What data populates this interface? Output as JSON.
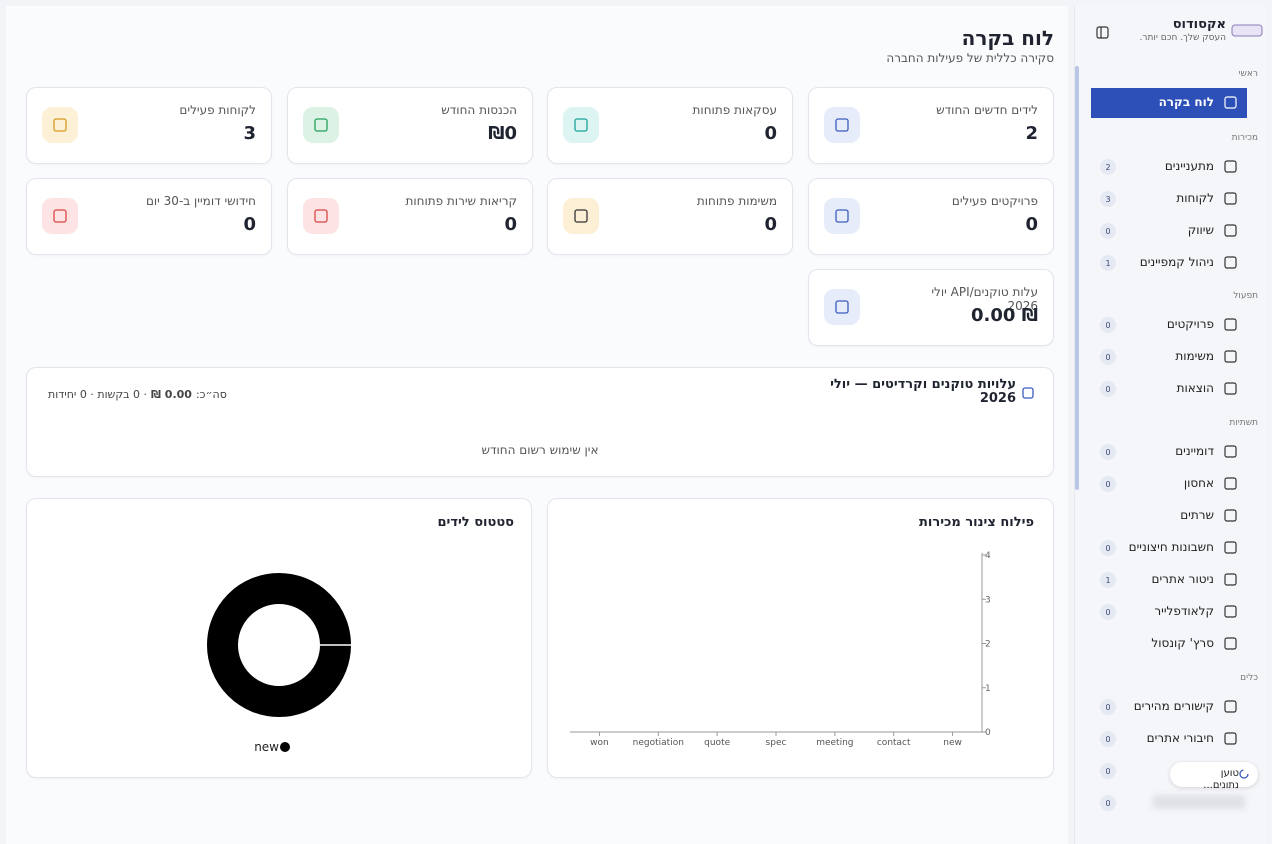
{
  "sidebar": {
    "brand": "אקסודוס",
    "tagline": "העסק שלך. חכם יותר.",
    "sections": [
      {
        "title": "ראשי",
        "items": [
          {
            "label": "לוח בקרה"
          }
        ]
      },
      {
        "title": "מכירות",
        "items": [
          {
            "label": "מתעניינים",
            "badge": 2
          },
          {
            "label": "לקוחות",
            "badge": 3
          },
          {
            "label": "שיווק",
            "badge": 0
          },
          {
            "label": "ניהול קמפיינים",
            "badge": 1
          }
        ]
      },
      {
        "title": "תפעול",
        "items": [
          {
            "label": "פרויקטים",
            "badge": 0
          },
          {
            "label": "משימות",
            "badge": 0
          },
          {
            "label": "הוצאות",
            "badge": 0
          }
        ]
      },
      {
        "title": "תשתיות",
        "items": [
          {
            "label": "דומיינים",
            "badge": 0
          },
          {
            "label": "אחסון",
            "badge": 0
          },
          {
            "label": "שרתים"
          },
          {
            "label": "חשבונות חיצוניים",
            "badge": 0
          },
          {
            "label": "ניטור אתרים",
            "badge": 1
          },
          {
            "label": "קלאודפלייר",
            "badge": 0
          },
          {
            "label": "סרץ' קונסול"
          }
        ]
      },
      {
        "title": "כלים",
        "items": [
          {
            "label": "קישורים מהירים",
            "badge": 0
          },
          {
            "label": "חיבורי אתרים",
            "badge": 0
          },
          {
            "badge": 0
          },
          {
            "badge": 0
          }
        ]
      }
    ]
  },
  "toast": "טוען נתונים...",
  "header": {
    "title": "לוח בקרה",
    "subtitle": "סקירה כללית של פעילות החברה"
  },
  "cards": [
    {
      "label": "לידים חדשים החודש",
      "value": 2
    },
    {
      "label": "עסקאות פתוחות",
      "value": 0
    },
    {
      "label": "הכנסות החודש",
      "value": "₪0"
    },
    {
      "label": "לקוחות פעילים",
      "value": 3
    },
    {
      "label": "פרויקטים פעילים",
      "value": 0
    },
    {
      "label": "משימות פתוחות",
      "value": 0
    },
    {
      "label": "קריאות שירות פתוחות",
      "value": 0
    },
    {
      "label": "חידושי דומיין ב-30 יום",
      "value": 0
    },
    {
      "label": "עלות טוקנים/API יולי 2026",
      "value": "₪ 0.00"
    }
  ],
  "usage": {
    "title": "עלויות טוקנים וקרדיטים — יולי 2026",
    "total_label": "סה״כ:",
    "total_value": "0.00 ₪",
    "details": "· 0 בקשות · 0 יחידות",
    "empty": "אין שימוש רשום החודש"
  },
  "pipeline_chart": {
    "type": "bar",
    "title": "פילוח צינור מכירות",
    "categories": [
      "new",
      "contact",
      "meeting",
      "spec",
      "quote",
      "negotiation",
      "won"
    ],
    "values": [
      0,
      0,
      0,
      0,
      0,
      0,
      0
    ],
    "ylim": [
      0,
      4
    ],
    "yticks": [
      0,
      1,
      2,
      3,
      4
    ]
  },
  "status_chart": {
    "type": "pie",
    "title": "סטטוס לידים",
    "categories": [
      "new"
    ],
    "values": [
      2
    ],
    "colors": [
      "#000000"
    ]
  }
}
